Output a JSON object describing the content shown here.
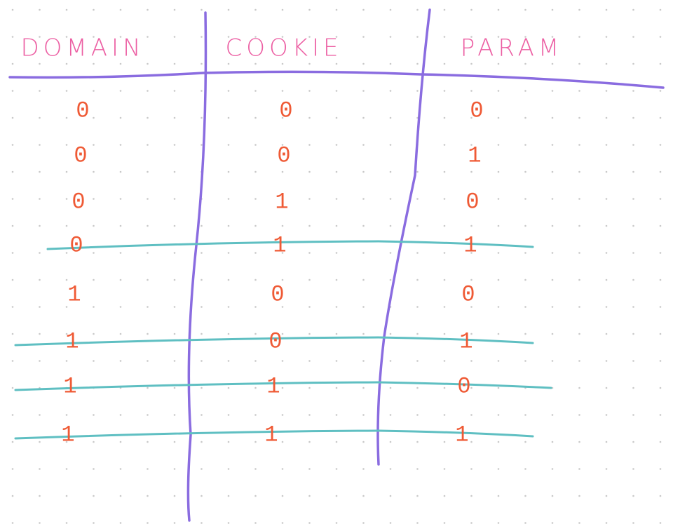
{
  "table": {
    "headers": [
      "DOMAIN",
      "COOKIE",
      "PARAM"
    ],
    "rows": [
      [
        0,
        0,
        0
      ],
      [
        0,
        0,
        1
      ],
      [
        0,
        1,
        0
      ],
      [
        0,
        1,
        1
      ],
      [
        1,
        0,
        0
      ],
      [
        1,
        0,
        1
      ],
      [
        1,
        1,
        0
      ],
      [
        1,
        1,
        1
      ]
    ],
    "struck": [
      false,
      false,
      false,
      true,
      false,
      true,
      true,
      true
    ]
  }
}
